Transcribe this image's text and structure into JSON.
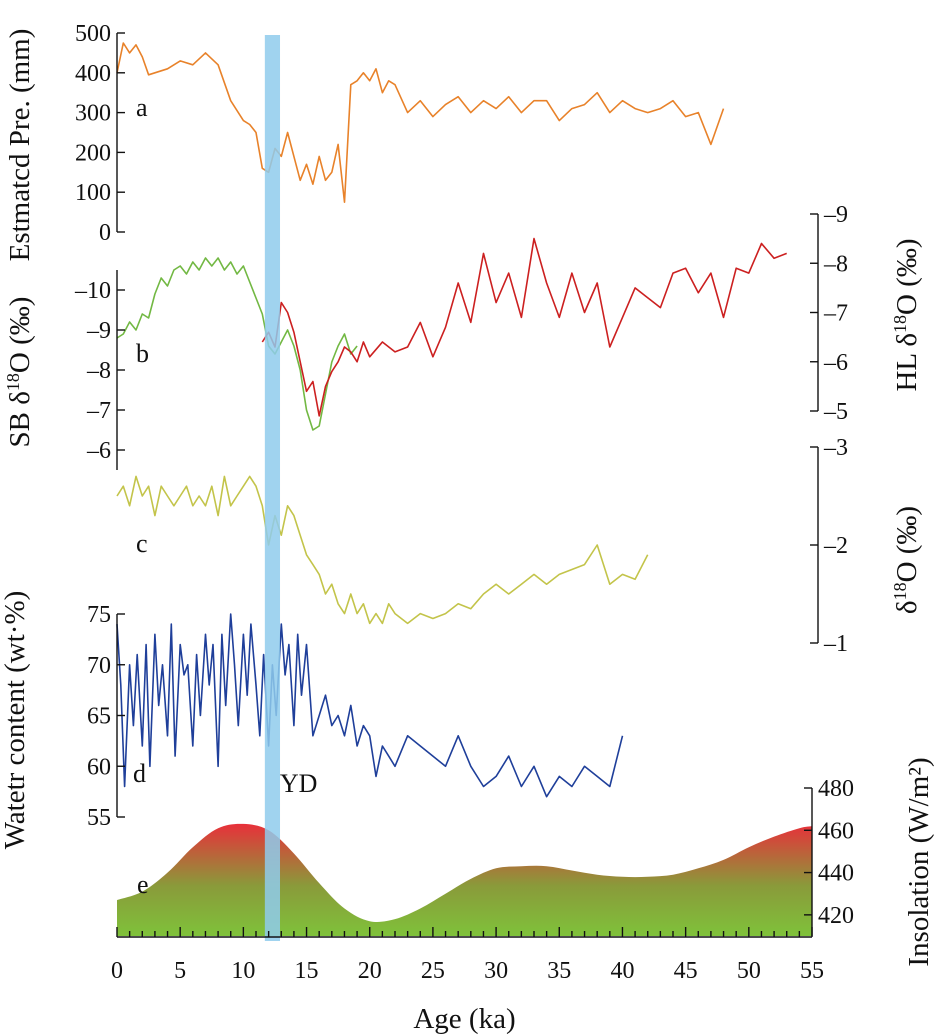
{
  "chart_data": [
    {
      "id": "a",
      "panel_label": "a",
      "type": "line",
      "ylabel": "Estmatcd Pre. (mm)",
      "ylim": [
        0,
        500
      ],
      "yticks": [
        "0",
        "100",
        "200",
        "300",
        "400",
        "500"
      ],
      "series": [
        {
          "color": "#e8822a",
          "x": [
            0,
            0.5,
            1,
            1.5,
            2,
            2.5,
            3,
            4,
            5,
            6,
            7,
            8,
            9,
            10,
            10.5,
            11,
            11.5,
            12,
            12.5,
            13,
            13.5,
            14,
            14.5,
            15,
            15.5,
            16,
            16.5,
            17,
            17.5,
            18,
            18.5,
            19,
            19.5,
            20,
            20.5,
            21,
            21.5,
            22,
            23,
            24,
            25,
            26,
            27,
            28,
            29,
            30,
            31,
            32,
            33,
            34,
            35,
            36,
            37,
            38,
            39,
            40,
            41,
            42,
            43,
            44,
            45,
            46,
            47,
            48
          ],
          "y": [
            400,
            475,
            450,
            470,
            440,
            395,
            400,
            410,
            430,
            420,
            450,
            420,
            330,
            280,
            270,
            250,
            160,
            150,
            210,
            190,
            250,
            190,
            130,
            170,
            120,
            190,
            130,
            150,
            220,
            75,
            370,
            380,
            400,
            380,
            410,
            350,
            380,
            370,
            300,
            330,
            290,
            320,
            340,
            300,
            330,
            310,
            340,
            300,
            330,
            330,
            280,
            310,
            320,
            350,
            300,
            330,
            310,
            300,
            310,
            330,
            290,
            300,
            220,
            310
          ]
        }
      ]
    },
    {
      "id": "b",
      "panel_label": "b",
      "type": "line",
      "ylabel": "SB δ18O (‰)",
      "ylim": [
        -5.5,
        -10.5
      ],
      "yticks": [
        "-6",
        "-7",
        "-8",
        "-9",
        "-10"
      ],
      "right_ylabel": "HL δ18O (‰)",
      "right_ylim": [
        -5,
        -9
      ],
      "right_yticks": [
        "-5",
        "-6",
        "-7",
        "-8",
        "-9"
      ],
      "series": [
        {
          "color": "#72b843",
          "axis": "left",
          "x": [
            0,
            0.5,
            1,
            1.5,
            2,
            2.5,
            3,
            3.5,
            4,
            4.5,
            5,
            5.5,
            6,
            6.5,
            7,
            7.5,
            8,
            8.5,
            9,
            9.5,
            10,
            10.5,
            11,
            11.5,
            12,
            12.5,
            13,
            13.5,
            14,
            14.5,
            15,
            15.5,
            16,
            16.5,
            17,
            17.5,
            18,
            18.5,
            19
          ],
          "y": [
            -8.8,
            -8.9,
            -9.2,
            -9,
            -9.4,
            -9.3,
            -9.9,
            -10.3,
            -10.1,
            -10.5,
            -10.6,
            -10.4,
            -10.7,
            -10.5,
            -10.8,
            -10.6,
            -10.8,
            -10.5,
            -10.7,
            -10.4,
            -10.6,
            -10.2,
            -9.8,
            -9.4,
            -8.6,
            -8.4,
            -8.7,
            -9.0,
            -8.6,
            -8.0,
            -7.0,
            -6.5,
            -6.6,
            -7.4,
            -8.2,
            -8.6,
            -8.9,
            -8.4,
            -8.6
          ]
        },
        {
          "color": "#cc2020",
          "axis": "right",
          "x": [
            11.5,
            12,
            12.5,
            13,
            13.5,
            14,
            14.5,
            15,
            15.5,
            16,
            16.5,
            17,
            17.5,
            18,
            18.5,
            19,
            19.5,
            20,
            21,
            22,
            23,
            24,
            25,
            26,
            27,
            28,
            29,
            30,
            31,
            32,
            33,
            34,
            35,
            36,
            37,
            38,
            39,
            40,
            41,
            42,
            43,
            44,
            45,
            46,
            47,
            48,
            49,
            50,
            51,
            52,
            53
          ],
          "y": [
            -6.4,
            -6.6,
            -6.3,
            -7.2,
            -7.0,
            -6.6,
            -6.0,
            -5.4,
            -5.6,
            -4.9,
            -5.5,
            -5.8,
            -6.0,
            -6.3,
            -6.2,
            -6.0,
            -6.4,
            -6.1,
            -6.4,
            -6.2,
            -6.3,
            -6.8,
            -6.1,
            -6.7,
            -7.6,
            -6.8,
            -8.2,
            -7.2,
            -7.8,
            -6.9,
            -8.5,
            -7.6,
            -6.9,
            -7.8,
            -7.0,
            -7.6,
            -6.3,
            -6.9,
            -7.5,
            -7.3,
            -7.1,
            -7.8,
            -7.9,
            -7.4,
            -7.8,
            -6.9,
            -7.9,
            -7.8,
            -8.4,
            -8.1,
            -8.2
          ]
        }
      ]
    },
    {
      "id": "c",
      "panel_label": "c",
      "type": "line",
      "right_ylabel": "δ18O (‰)",
      "right_ylim": [
        -1,
        -3
      ],
      "right_yticks": [
        "-1",
        "-2",
        "-3"
      ],
      "series": [
        {
          "color": "#c3c44a",
          "x": [
            0,
            0.5,
            1,
            1.5,
            2,
            2.5,
            3,
            3.5,
            4,
            4.5,
            5,
            5.5,
            6,
            6.5,
            7,
            7.5,
            8,
            8.5,
            9,
            9.5,
            10,
            10.5,
            11,
            11.5,
            12,
            12.5,
            13,
            13.5,
            14,
            14.5,
            15,
            15.5,
            16,
            16.5,
            17,
            17.5,
            18,
            18.5,
            19,
            19.5,
            20,
            20.5,
            21,
            21.5,
            22,
            23,
            24,
            25,
            26,
            27,
            28,
            29,
            30,
            31,
            32,
            33,
            34,
            35,
            36,
            37,
            38,
            39,
            40,
            41,
            42
          ],
          "y": [
            -2.5,
            -2.6,
            -2.4,
            -2.7,
            -2.5,
            -2.6,
            -2.3,
            -2.6,
            -2.5,
            -2.4,
            -2.5,
            -2.6,
            -2.4,
            -2.5,
            -2.4,
            -2.6,
            -2.3,
            -2.7,
            -2.4,
            -2.5,
            -2.6,
            -2.7,
            -2.6,
            -2.4,
            -2.0,
            -2.3,
            -2.1,
            -2.4,
            -2.3,
            -2.1,
            -1.9,
            -1.8,
            -1.7,
            -1.5,
            -1.6,
            -1.4,
            -1.3,
            -1.5,
            -1.3,
            -1.4,
            -1.2,
            -1.3,
            -1.2,
            -1.4,
            -1.3,
            -1.2,
            -1.3,
            -1.25,
            -1.3,
            -1.4,
            -1.35,
            -1.5,
            -1.6,
            -1.5,
            -1.6,
            -1.7,
            -1.6,
            -1.7,
            -1.75,
            -1.8,
            -2.0,
            -1.6,
            -1.7,
            -1.65,
            -1.9
          ]
        }
      ]
    },
    {
      "id": "d",
      "panel_label": "d",
      "type": "line",
      "ylabel": "Watetr content (wt·%)",
      "ylim": [
        55,
        75
      ],
      "yticks": [
        "55",
        "60",
        "65",
        "70",
        "75"
      ],
      "series": [
        {
          "color": "#1f3f9a",
          "x": [
            0,
            0.3,
            0.6,
            1,
            1.3,
            1.6,
            2,
            2.3,
            2.6,
            3,
            3.3,
            3.6,
            4,
            4.3,
            4.6,
            5,
            5.3,
            5.6,
            6,
            6.3,
            6.6,
            7,
            7.3,
            7.6,
            8,
            8.3,
            8.6,
            9,
            9.3,
            9.6,
            10,
            10.3,
            10.6,
            11,
            11.3,
            11.6,
            12,
            12.3,
            12.6,
            13,
            13.3,
            13.6,
            14,
            14.3,
            14.6,
            15,
            15.5,
            16,
            16.5,
            17,
            17.5,
            18,
            18.5,
            19,
            19.5,
            20,
            20.5,
            21,
            21.5,
            22,
            23,
            24,
            25,
            26,
            27,
            28,
            29,
            30,
            31,
            32,
            33,
            34,
            35,
            36,
            37,
            38,
            39,
            40
          ],
          "y": [
            74,
            68,
            58,
            70,
            64,
            71,
            62,
            72,
            60,
            73,
            66,
            70,
            63,
            74,
            61,
            72,
            69,
            70,
            62,
            71,
            65,
            73,
            68,
            72,
            60,
            73,
            66,
            75,
            70,
            64,
            73,
            67,
            74,
            68,
            63,
            71,
            62,
            70,
            65,
            74,
            69,
            72,
            64,
            73,
            67,
            72,
            63,
            65,
            67,
            64,
            65,
            63,
            66,
            62,
            64,
            63,
            59,
            62,
            61,
            60,
            63,
            62,
            61,
            60,
            63,
            60,
            58,
            59,
            61,
            58,
            60,
            57,
            59,
            58,
            60,
            59,
            58,
            63
          ]
        }
      ]
    },
    {
      "id": "e",
      "panel_label": "e",
      "type": "area",
      "right_ylabel": "Insolation (W/m2)",
      "right_ylim": [
        410,
        480
      ],
      "right_yticks": [
        "420",
        "440",
        "460",
        "480"
      ],
      "xlabel": "Age (ka)",
      "xlim": [
        0,
        55
      ],
      "xticks": [
        "0",
        "5",
        "10",
        "15",
        "20",
        "25",
        "30",
        "35",
        "40",
        "45",
        "50",
        "55"
      ],
      "series": [
        {
          "color_top": "#e8303a",
          "color_bottom": "#7fc23a",
          "x": [
            0,
            2,
            4,
            6,
            8,
            10,
            12,
            14,
            16,
            18,
            20,
            22,
            24,
            26,
            28,
            30,
            32,
            34,
            36,
            38,
            40,
            42,
            44,
            46,
            48,
            50,
            52,
            54,
            55
          ],
          "y": [
            427,
            431,
            440,
            452,
            461,
            463,
            460,
            449,
            435,
            423,
            417,
            418,
            423,
            430,
            437,
            442,
            443,
            443,
            441,
            439,
            438,
            438,
            439,
            442,
            446,
            452,
            457,
            461,
            462
          ]
        }
      ]
    }
  ],
  "annotations": {
    "yd_label": "YD",
    "yd_band_ka": [
      11.7,
      12.9
    ],
    "band_color": "#8fcbec"
  }
}
